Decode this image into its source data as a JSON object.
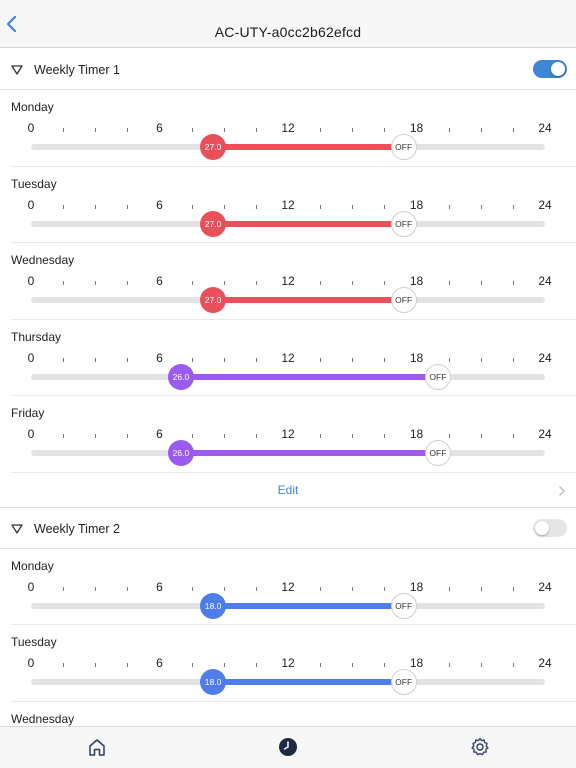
{
  "header": {
    "title": "AC-UTY-a0cc2b62efcd"
  },
  "scale_labels": [
    "0",
    "6",
    "12",
    "18",
    "24"
  ],
  "timers": [
    {
      "title": "Weekly Timer 1",
      "enabled": true,
      "days": [
        {
          "name": "Monday",
          "temp": "27.0",
          "off": "OFF",
          "start_hour": 8.5,
          "end_hour": 17.4,
          "color": "#e8505b"
        },
        {
          "name": "Tuesday",
          "temp": "27.0",
          "off": "OFF",
          "start_hour": 8.5,
          "end_hour": 17.4,
          "color": "#e8505b"
        },
        {
          "name": "Wednesday",
          "temp": "27.0",
          "off": "OFF",
          "start_hour": 8.5,
          "end_hour": 17.4,
          "color": "#e8505b"
        },
        {
          "name": "Thursday",
          "temp": "26.0",
          "off": "OFF",
          "start_hour": 7.0,
          "end_hour": 19.0,
          "color": "#9b5bef"
        },
        {
          "name": "Friday",
          "temp": "26.0",
          "off": "OFF",
          "start_hour": 7.0,
          "end_hour": 19.0,
          "color": "#9b5bef"
        }
      ],
      "edit_label": "Edit"
    },
    {
      "title": "Weekly Timer 2",
      "enabled": false,
      "days": [
        {
          "name": "Monday",
          "temp": "18.0",
          "off": "OFF",
          "start_hour": 8.5,
          "end_hour": 17.4,
          "color": "#4e7de9"
        },
        {
          "name": "Tuesday",
          "temp": "18.0",
          "off": "OFF",
          "start_hour": 8.5,
          "end_hour": 17.4,
          "color": "#4e7de9"
        },
        {
          "name": "Wednesday"
        }
      ]
    }
  ],
  "tabbar": {
    "tabs": [
      "home-icon",
      "clock-icon",
      "settings-icon"
    ]
  }
}
